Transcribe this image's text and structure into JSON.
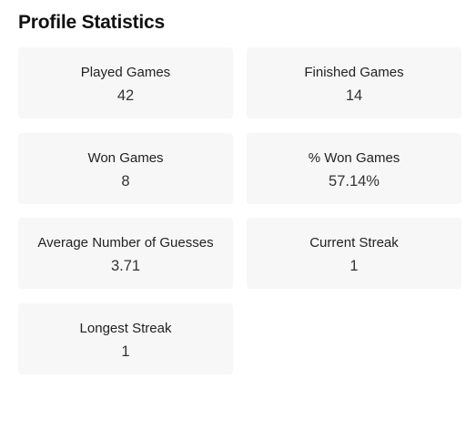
{
  "page": {
    "title": "Profile Statistics"
  },
  "stats": [
    {
      "label": "Played Games",
      "value": "42"
    },
    {
      "label": "Finished Games",
      "value": "14"
    },
    {
      "label": "Won Games",
      "value": "8"
    },
    {
      "label": "% Won Games",
      "value": "57.14%"
    },
    {
      "label": "Average Number of Guesses",
      "value": "3.71"
    },
    {
      "label": "Current Streak",
      "value": "1"
    },
    {
      "label": "Longest Streak",
      "value": "1"
    }
  ],
  "colors": {
    "card_background": "#f7f7f7",
    "title_text": "#111111",
    "value_text": "#333333"
  }
}
